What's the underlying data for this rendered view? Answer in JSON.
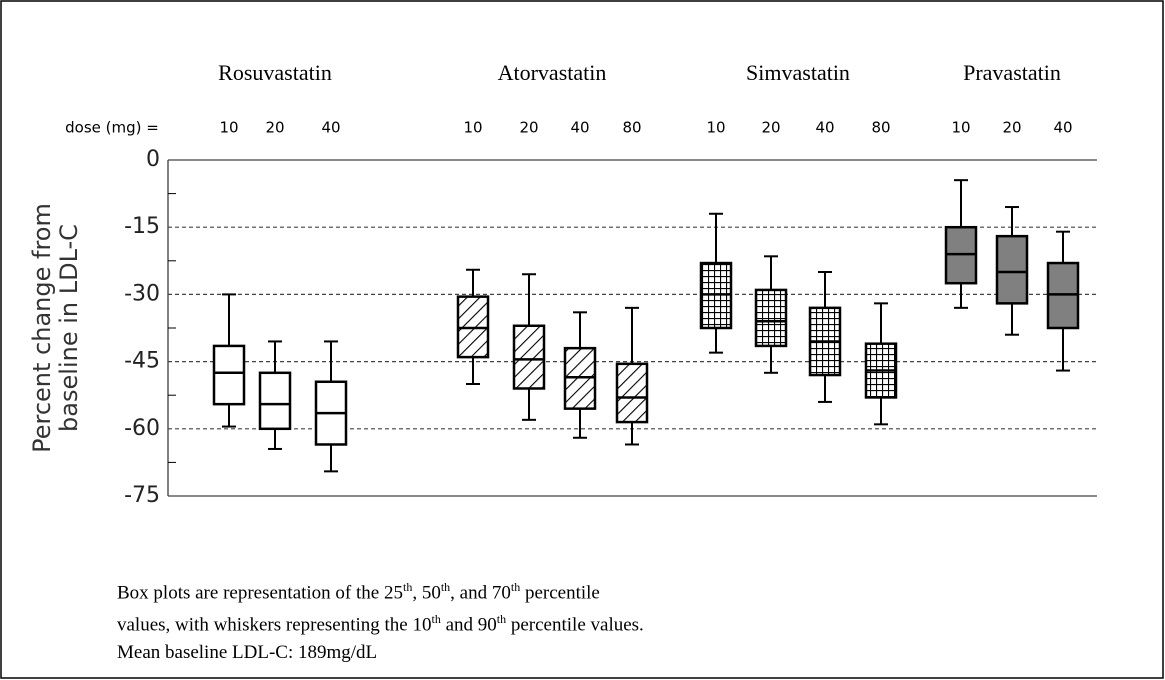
{
  "chart_data": {
    "type": "box",
    "ylabel": [
      "Percent change from",
      "baseline in LDL-C"
    ],
    "dose_label": "dose (mg) =",
    "ylim": [
      -75,
      0
    ],
    "yticks": [
      0,
      -15,
      -30,
      -45,
      -60,
      -75
    ],
    "grid": true,
    "groups": [
      {
        "name": "Rosuvastatin",
        "pattern": "none",
        "color": "#ffffff",
        "boxes": [
          {
            "dose": "10",
            "whislo": -59.5,
            "q1": -54.5,
            "med": -47.5,
            "q3": -41.5,
            "whishi": -30
          },
          {
            "dose": "20",
            "whislo": -64.5,
            "q1": -60,
            "med": -54.5,
            "q3": -47.5,
            "whishi": -40.5
          },
          {
            "dose": "40",
            "whislo": -69.5,
            "q1": -63.5,
            "med": -56.5,
            "q3": -49.5,
            "whishi": -40.5
          }
        ]
      },
      {
        "name": "Atorvastatin",
        "pattern": "diagonal",
        "color": "#ffffff",
        "boxes": [
          {
            "dose": "10",
            "whislo": -50,
            "q1": -44,
            "med": -37.5,
            "q3": -30.5,
            "whishi": -24.5
          },
          {
            "dose": "20",
            "whislo": -58,
            "q1": -51,
            "med": -44.5,
            "q3": -37,
            "whishi": -25.5
          },
          {
            "dose": "40",
            "whislo": -62,
            "q1": -55.5,
            "med": -48.5,
            "q3": -42,
            "whishi": -34
          },
          {
            "dose": "80",
            "whislo": -63.5,
            "q1": -58.5,
            "med": -53,
            "q3": -45.5,
            "whishi": -33
          }
        ]
      },
      {
        "name": "Simvastatin",
        "pattern": "grid",
        "color": "#ffffff",
        "boxes": [
          {
            "dose": "10",
            "whislo": -43,
            "q1": -37.5,
            "med": -30,
            "q3": -23,
            "whishi": -12
          },
          {
            "dose": "20",
            "whislo": -47.5,
            "q1": -41.5,
            "med": -36,
            "q3": -29,
            "whishi": -21.5
          },
          {
            "dose": "40",
            "whislo": -54,
            "q1": -48,
            "med": -40.5,
            "q3": -33,
            "whishi": -25
          },
          {
            "dose": "80",
            "whislo": -59,
            "q1": -53,
            "med": -47,
            "q3": -41,
            "whishi": -32
          }
        ]
      },
      {
        "name": "Pravastatin",
        "pattern": "solid",
        "color": "#808080",
        "boxes": [
          {
            "dose": "10",
            "whislo": -33,
            "q1": -27.5,
            "med": -21,
            "q3": -15,
            "whishi": -4.5
          },
          {
            "dose": "20",
            "whislo": -39,
            "q1": -32,
            "med": -25,
            "q3": -17,
            "whishi": -10.5
          },
          {
            "dose": "40",
            "whislo": -47,
            "q1": -37.5,
            "med": -30,
            "q3": -23,
            "whishi": -16
          }
        ]
      }
    ]
  },
  "note": {
    "lines": [
      [
        "Box plots are representation of the 25",
        "th",
        ", 50",
        "th",
        ", and 70",
        "th",
        " percentile"
      ],
      [
        "values, with whiskers representing the 10",
        "th",
        " and 90",
        "th",
        " percentile values."
      ],
      [
        "Mean baseline LDL-C: 189mg/dL"
      ]
    ]
  }
}
